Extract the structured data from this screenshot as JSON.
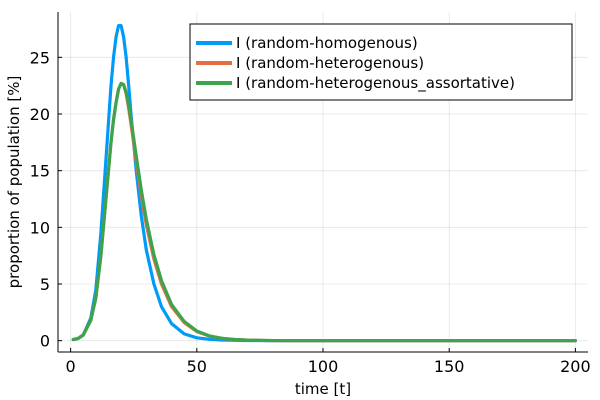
{
  "chart_data": {
    "type": "line",
    "title": "",
    "xlabel": "time [t]",
    "ylabel": "proportion of population [%]",
    "xlim": [
      -5,
      205
    ],
    "ylim": [
      -1,
      29
    ],
    "xticks": [
      0,
      50,
      100,
      150,
      200
    ],
    "yticks": [
      0,
      5,
      10,
      15,
      20,
      25
    ],
    "grid": true,
    "legend_position": "top-right",
    "x": [
      1,
      3,
      5,
      8,
      10,
      12,
      14,
      16,
      17,
      18,
      19,
      20,
      21,
      22,
      23,
      24,
      26,
      28,
      30,
      33,
      36,
      40,
      45,
      50,
      55,
      60,
      65,
      70,
      80,
      90,
      100,
      120,
      140,
      160,
      180,
      200
    ],
    "series": [
      {
        "name": "I (random-homogenous)",
        "color": "#009af9",
        "values": [
          0.1,
          0.2,
          0.5,
          2.0,
          4.5,
          9.5,
          16.0,
          22.5,
          25.0,
          26.8,
          27.8,
          27.8,
          26.8,
          25.0,
          22.5,
          19.8,
          15.0,
          11.0,
          8.0,
          5.0,
          3.0,
          1.5,
          0.6,
          0.25,
          0.12,
          0.06,
          0.03,
          0.01,
          0.0,
          0.0,
          0.0,
          0.0,
          0.0,
          0.0,
          0.0,
          0.0
        ]
      },
      {
        "name": "I (random-heterogenous)",
        "color": "#e26f46",
        "values": [
          0.1,
          0.2,
          0.5,
          1.8,
          3.8,
          7.5,
          12.5,
          17.5,
          19.5,
          21.0,
          22.2,
          22.7,
          22.6,
          21.8,
          20.5,
          19.0,
          15.8,
          12.8,
          10.2,
          7.2,
          5.0,
          3.0,
          1.6,
          0.8,
          0.4,
          0.2,
          0.1,
          0.05,
          0.01,
          0.0,
          0.0,
          0.0,
          0.0,
          0.0,
          0.0,
          0.0
        ]
      },
      {
        "name": "I (random-heterogenous_assortative)",
        "color": "#3da44d",
        "values": [
          0.1,
          0.2,
          0.5,
          1.8,
          3.8,
          7.5,
          12.5,
          17.5,
          19.5,
          21.0,
          22.2,
          22.7,
          22.6,
          21.9,
          20.8,
          19.4,
          16.3,
          13.3,
          10.7,
          7.6,
          5.3,
          3.2,
          1.7,
          0.85,
          0.42,
          0.21,
          0.1,
          0.05,
          0.01,
          0.0,
          0.0,
          0.0,
          0.0,
          0.0,
          0.0,
          0.0
        ]
      }
    ]
  }
}
